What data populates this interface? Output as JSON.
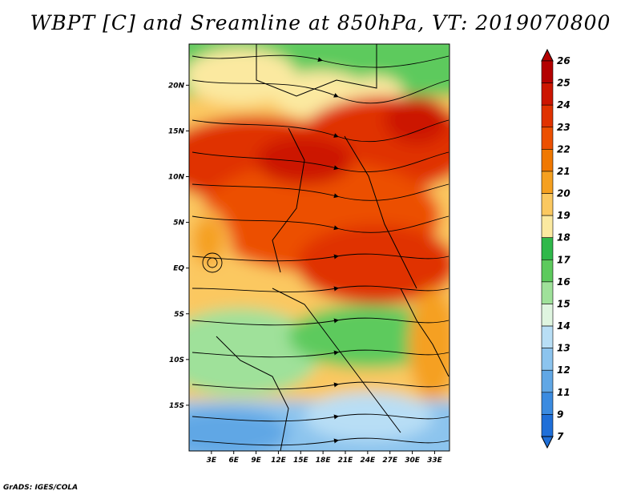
{
  "title": "WBPT [C] and Sreamline at 850hPa, VT: 2019070800",
  "credit": "GrADS: IGES/COLA",
  "map": {
    "lon_range": [
      0,
      35
    ],
    "lat_range": [
      -20,
      24.5
    ],
    "x_ticks": [
      "3E",
      "6E",
      "9E",
      "12E",
      "15E",
      "18E",
      "21E",
      "24E",
      "27E",
      "30E",
      "33E"
    ],
    "x_tick_values": [
      3,
      6,
      9,
      12,
      15,
      18,
      21,
      24,
      27,
      30,
      33
    ],
    "y_ticks": [
      "20N",
      "15N",
      "10N",
      "5N",
      "EQ",
      "5S",
      "10S",
      "15S"
    ],
    "y_tick_values": [
      20,
      15,
      10,
      5,
      0,
      -5,
      -10,
      -15
    ]
  },
  "colorbar": {
    "labels": [
      "26",
      "25",
      "24",
      "23",
      "22",
      "21",
      "20",
      "19",
      "18",
      "17",
      "16",
      "15",
      "14",
      "13",
      "12",
      "11",
      "9",
      "7"
    ],
    "colors": [
      "#b30000",
      "#cc1500",
      "#e03200",
      "#ec5000",
      "#f07800",
      "#f5a020",
      "#fbc860",
      "#fbe9a0",
      "#2fb84a",
      "#5dca5d",
      "#9fe19a",
      "#dff5e0",
      "#b8def5",
      "#8cc4ee",
      "#61a7e5",
      "#3b8be0",
      "#1f6fd8"
    ]
  },
  "legend_colors": {
    "warmest": "#b30000",
    "coolest": "#1f6fd8"
  }
}
